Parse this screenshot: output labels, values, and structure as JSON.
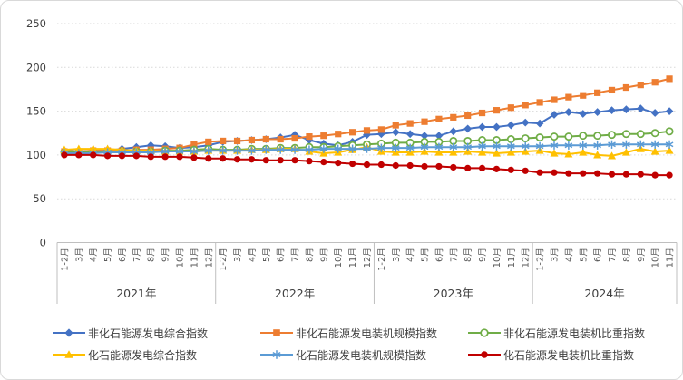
{
  "chart_data": {
    "type": "line",
    "title": "",
    "xlabel": "",
    "ylabel": "",
    "ylim": [
      0,
      250
    ],
    "yticks": [
      0,
      50,
      100,
      150,
      200,
      250
    ],
    "grid": "horizontal-dotted",
    "legend_position": "bottom",
    "categories": [
      "1-2月",
      "3月",
      "4月",
      "5月",
      "6月",
      "7月",
      "8月",
      "9月",
      "10月",
      "11月",
      "12月",
      "1-2月",
      "3月",
      "4月",
      "5月",
      "6月",
      "7月",
      "8月",
      "9月",
      "10月",
      "11月",
      "12月",
      "1-2月",
      "3月",
      "4月",
      "5月",
      "6月",
      "7月",
      "8月",
      "9月",
      "10月",
      "11月",
      "12月",
      "1-2月",
      "3月",
      "4月",
      "5月",
      "6月",
      "7月",
      "8月",
      "9月",
      "10月",
      "11月"
    ],
    "year_groups": [
      {
        "label": "2021年",
        "count": 11
      },
      {
        "label": "2022年",
        "count": 11
      },
      {
        "label": "2023年",
        "count": 11
      },
      {
        "label": "2024年",
        "count": 10
      }
    ],
    "axis_color": "#bfbfbf",
    "grid_color": "#d9d9d9",
    "tick_label_color": "#595959",
    "axis_label_color": "#404040",
    "series": [
      {
        "name": "非化石能源发电综合指数",
        "color": "#4472C4",
        "marker": "diamond",
        "values": [
          105,
          104,
          105,
          105,
          107,
          109,
          111,
          110,
          108,
          109,
          111,
          115,
          116,
          117,
          118,
          120,
          123,
          117,
          113,
          111,
          115,
          123,
          124,
          126,
          124,
          122,
          122,
          127,
          130,
          132,
          132,
          134,
          137,
          136,
          146,
          149,
          147,
          149,
          151,
          152,
          153,
          148,
          150
        ]
      },
      {
        "name": "非化石能源发电装机规模指数",
        "color": "#ED7D31",
        "marker": "square",
        "values": [
          104,
          104,
          105,
          105,
          105,
          106,
          106,
          107,
          108,
          112,
          115,
          116,
          116,
          117,
          118,
          118,
          119,
          121,
          122,
          124,
          126,
          128,
          129,
          134,
          136,
          138,
          141,
          143,
          145,
          148,
          151,
          154,
          157,
          160,
          163,
          166,
          168,
          171,
          174,
          177,
          180,
          183,
          187
        ]
      },
      {
        "name": "非化石能源发电装机比重指数",
        "color": "#70AD47",
        "marker": "circle-open",
        "values": [
          103,
          103,
          103,
          104,
          104,
          104,
          104,
          105,
          105,
          106,
          107,
          106,
          106,
          107,
          107,
          108,
          108,
          109,
          109,
          110,
          111,
          112,
          113,
          114,
          114,
          115,
          115,
          116,
          116,
          117,
          117,
          118,
          119,
          120,
          121,
          121,
          122,
          122,
          123,
          124,
          124,
          125,
          127
        ]
      },
      {
        "name": "化石能源发电综合指数",
        "color": "#FFC000",
        "marker": "triangle",
        "values": [
          106,
          107,
          107,
          107,
          106,
          105,
          105,
          104,
          104,
          104,
          105,
          105,
          105,
          106,
          106,
          107,
          107,
          104,
          102,
          103,
          106,
          109,
          104,
          103,
          103,
          104,
          103,
          103,
          104,
          103,
          102,
          103,
          104,
          105,
          102,
          101,
          103,
          100,
          99,
          103,
          107,
          104,
          105
        ]
      },
      {
        "name": "化石能源发电装机规模指数",
        "color": "#5B9BD5",
        "marker": "asterisk",
        "values": [
          102,
          102,
          102,
          103,
          103,
          103,
          103,
          104,
          104,
          104,
          105,
          105,
          105,
          105,
          106,
          106,
          106,
          106,
          107,
          107,
          107,
          107,
          108,
          108,
          108,
          109,
          109,
          109,
          109,
          110,
          110,
          110,
          110,
          110,
          111,
          111,
          111,
          111,
          112,
          112,
          112,
          112,
          112
        ]
      },
      {
        "name": "化石能源发电装机比重指数",
        "color": "#C00000",
        "marker": "circle",
        "values": [
          100,
          100,
          100,
          99,
          99,
          99,
          98,
          98,
          98,
          97,
          96,
          96,
          95,
          95,
          94,
          94,
          94,
          93,
          92,
          91,
          90,
          89,
          89,
          88,
          88,
          87,
          87,
          86,
          85,
          85,
          84,
          83,
          82,
          80,
          80,
          79,
          79,
          79,
          78,
          78,
          78,
          77,
          77
        ]
      }
    ]
  }
}
